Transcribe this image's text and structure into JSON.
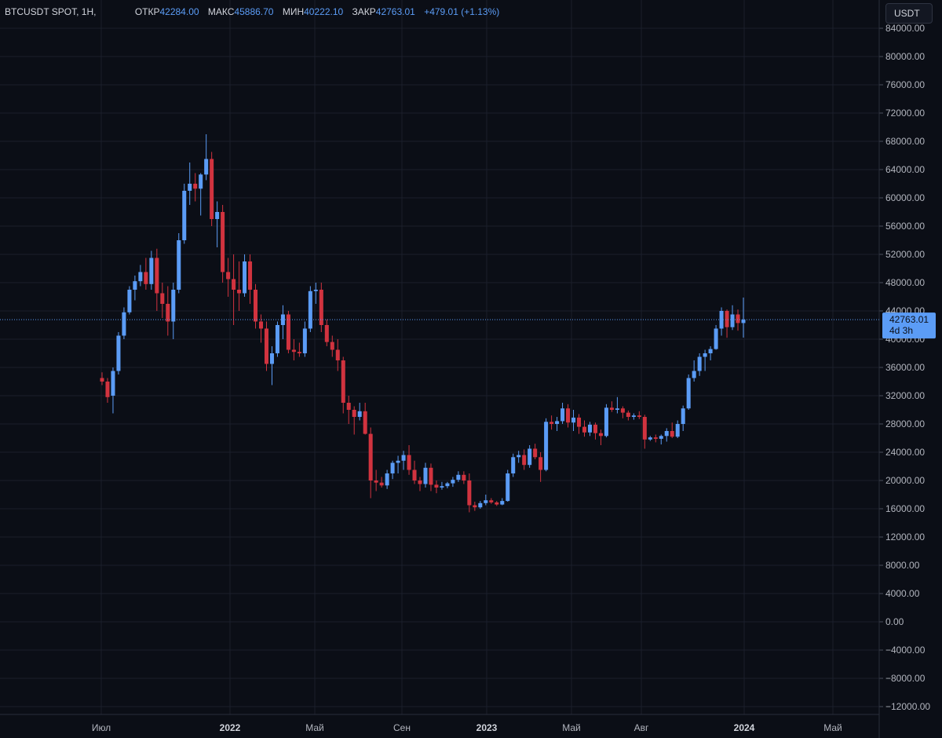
{
  "legend": {
    "symbol": "BTCUSDT SPOT, 1H,",
    "open_label": "ОТКР",
    "open": "42284.00",
    "high_label": "МАКС",
    "high": "45886.70",
    "low_label": "МИН",
    "low": "40222.10",
    "close_label": "ЗАКР",
    "close": "42763.01",
    "change": "+479.01 (+1.13%)"
  },
  "currency_button": "USDT",
  "price_label": {
    "price": "42763.01",
    "countdown": "4d 3h"
  },
  "colors": {
    "up": "#5b9cf6",
    "down": "#d1333f",
    "background": "#0b0e16",
    "grid": "#1b1f2b",
    "axis_text": "#b2b5be",
    "price_line": "#5b9cf6"
  },
  "chart_data": {
    "type": "candlestick",
    "symbol": "BTCUSDT",
    "timeframe": "1H",
    "ylim": [
      -12000,
      84000
    ],
    "y_ticks": [
      "84000.00",
      "80000.00",
      "76000.00",
      "72000.00",
      "68000.00",
      "64000.00",
      "60000.00",
      "56000.00",
      "52000.00",
      "48000.00",
      "44000.00",
      "40000.00",
      "36000.00",
      "32000.00",
      "28000.00",
      "24000.00",
      "20000.00",
      "16000.00",
      "12000.00",
      "8000.00",
      "4000.00",
      "0.00",
      "−4000.00",
      "−8000.00",
      "−12000.00"
    ],
    "x_ticks": [
      {
        "label": "Июл",
        "bold": false
      },
      {
        "label": "2022",
        "bold": true
      },
      {
        "label": "Май",
        "bold": false
      },
      {
        "label": "Сен",
        "bold": false
      },
      {
        "label": "2023",
        "bold": true
      },
      {
        "label": "Май",
        "bold": false
      },
      {
        "label": "Авг",
        "bold": false
      },
      {
        "label": "2024",
        "bold": true
      },
      {
        "label": "Май",
        "bold": false
      }
    ],
    "last_price": 42763.01,
    "candles": [
      [
        34500,
        35300,
        33500,
        34000
      ],
      [
        34000,
        34500,
        31000,
        31800
      ],
      [
        32000,
        36000,
        29500,
        35500
      ],
      [
        35500,
        41000,
        35000,
        40500
      ],
      [
        40500,
        44500,
        40000,
        43800
      ],
      [
        43800,
        47500,
        43500,
        47000
      ],
      [
        47000,
        49000,
        45500,
        48200
      ],
      [
        48200,
        50500,
        47500,
        49500
      ],
      [
        49500,
        51500,
        47000,
        47800
      ],
      [
        47800,
        52500,
        47000,
        51500
      ],
      [
        51500,
        52800,
        44000,
        46500
      ],
      [
        46500,
        48000,
        43000,
        45000
      ],
      [
        45000,
        47500,
        40500,
        42500
      ],
      [
        42500,
        48000,
        40000,
        47000
      ],
      [
        47000,
        55000,
        46500,
        54000
      ],
      [
        54000,
        62000,
        53500,
        61000
      ],
      [
        61000,
        65000,
        59000,
        62000
      ],
      [
        62000,
        63500,
        59500,
        61300
      ],
      [
        61300,
        63500,
        57500,
        63300
      ],
      [
        63300,
        69000,
        62500,
        65500
      ],
      [
        65500,
        66500,
        56000,
        57000
      ],
      [
        57000,
        59500,
        53000,
        58000
      ],
      [
        58000,
        59000,
        48000,
        49500
      ],
      [
        49500,
        51500,
        46000,
        48500
      ],
      [
        48500,
        52000,
        42000,
        47000
      ],
      [
        47000,
        51000,
        44000,
        46500
      ],
      [
        46500,
        52000,
        46000,
        51000
      ],
      [
        51000,
        52000,
        45000,
        47000
      ],
      [
        47000,
        47800,
        41500,
        42500
      ],
      [
        42500,
        43500,
        39500,
        41500
      ],
      [
        41500,
        42500,
        35500,
        36500
      ],
      [
        36500,
        39000,
        33500,
        38000
      ],
      [
        38000,
        42500,
        37500,
        42000
      ],
      [
        42000,
        44800,
        40000,
        43500
      ],
      [
        43500,
        44000,
        38000,
        38500
      ],
      [
        38500,
        40000,
        37000,
        38200
      ],
      [
        38200,
        39500,
        37500,
        38000
      ],
      [
        38000,
        42500,
        37500,
        41500
      ],
      [
        41500,
        47500,
        41000,
        46800
      ],
      [
        46800,
        48000,
        45000,
        47000
      ],
      [
        47000,
        48000,
        41000,
        42000
      ],
      [
        42000,
        42800,
        39000,
        39600
      ],
      [
        39600,
        40500,
        37500,
        38500
      ],
      [
        38500,
        40000,
        35500,
        37000
      ],
      [
        37000,
        37500,
        29500,
        31000
      ],
      [
        31000,
        32000,
        28000,
        30000
      ],
      [
        30000,
        30500,
        26500,
        29000
      ],
      [
        29000,
        31000,
        28500,
        29800
      ],
      [
        29800,
        31000,
        26500,
        26600
      ],
      [
        26600,
        27500,
        17500,
        20000
      ],
      [
        20000,
        21500,
        18500,
        19700
      ],
      [
        19700,
        20500,
        19000,
        19300
      ],
      [
        19300,
        21500,
        18800,
        21000
      ],
      [
        21000,
        22800,
        20200,
        22500
      ],
      [
        22500,
        23500,
        21000,
        22800
      ],
      [
        22800,
        24200,
        21500,
        23600
      ],
      [
        23600,
        25000,
        20800,
        21500
      ],
      [
        21500,
        22800,
        19500,
        20000
      ],
      [
        20000,
        20500,
        18500,
        19500
      ],
      [
        19500,
        22500,
        19000,
        21800
      ],
      [
        21800,
        22400,
        18500,
        19400
      ],
      [
        19400,
        20000,
        18200,
        19000
      ],
      [
        19000,
        19800,
        18700,
        19200
      ],
      [
        19200,
        19800,
        18900,
        19600
      ],
      [
        19600,
        20500,
        19100,
        20100
      ],
      [
        20100,
        21300,
        19800,
        20800
      ],
      [
        20800,
        21300,
        19500,
        20000
      ],
      [
        20000,
        21000,
        15500,
        16500
      ],
      [
        16500,
        17000,
        15700,
        16200
      ],
      [
        16200,
        17100,
        16000,
        16800
      ],
      [
        16800,
        18000,
        16500,
        17200
      ],
      [
        17200,
        17500,
        16700,
        16900
      ],
      [
        16900,
        17100,
        16400,
        16600
      ],
      [
        16600,
        17500,
        16500,
        17100
      ],
      [
        17100,
        21500,
        17000,
        21000
      ],
      [
        21000,
        23800,
        20500,
        23300
      ],
      [
        23300,
        24200,
        22500,
        23600
      ],
      [
        23600,
        24400,
        21500,
        22200
      ],
      [
        22200,
        25000,
        21800,
        24500
      ],
      [
        24500,
        25200,
        23000,
        23300
      ],
      [
        23300,
        24000,
        19800,
        21500
      ],
      [
        21500,
        28800,
        21300,
        28300
      ],
      [
        28300,
        29200,
        27200,
        28000
      ],
      [
        28000,
        29000,
        27000,
        28400
      ],
      [
        28400,
        31000,
        28000,
        30200
      ],
      [
        30200,
        30800,
        27500,
        28200
      ],
      [
        28200,
        30000,
        27000,
        28900
      ],
      [
        28900,
        29400,
        26600,
        27600
      ],
      [
        27600,
        28500,
        26200,
        26800
      ],
      [
        26800,
        28300,
        26300,
        27900
      ],
      [
        27900,
        28200,
        25800,
        26700
      ],
      [
        26700,
        27200,
        25000,
        26300
      ],
      [
        26300,
        30800,
        26100,
        30300
      ],
      [
        30300,
        31200,
        29700,
        30000
      ],
      [
        30000,
        31800,
        29500,
        30200
      ],
      [
        30200,
        30500,
        28800,
        29600
      ],
      [
        29600,
        29900,
        28500,
        29000
      ],
      [
        29000,
        29500,
        28600,
        29200
      ],
      [
        29200,
        29800,
        28700,
        29000
      ],
      [
        29000,
        29300,
        24500,
        25800
      ],
      [
        25800,
        26300,
        25600,
        26100
      ],
      [
        26100,
        26500,
        25400,
        25900
      ],
      [
        25900,
        26500,
        25100,
        26300
      ],
      [
        26300,
        27400,
        25500,
        27000
      ],
      [
        27000,
        28200,
        26000,
        26200
      ],
      [
        26200,
        28500,
        26000,
        28000
      ],
      [
        28000,
        30600,
        27000,
        30200
      ],
      [
        30200,
        35000,
        30000,
        34500
      ],
      [
        34500,
        37000,
        34000,
        35500
      ],
      [
        35500,
        38000,
        34800,
        37500
      ],
      [
        37500,
        38500,
        35500,
        38000
      ],
      [
        38000,
        39000,
        37000,
        38600
      ],
      [
        38600,
        42000,
        38500,
        41500
      ],
      [
        41500,
        44500,
        40500,
        44000
      ],
      [
        44000,
        44200,
        40200,
        41700
      ],
      [
        41700,
        44800,
        41300,
        43500
      ],
      [
        43500,
        44200,
        41200,
        42284
      ],
      [
        42284,
        45886.7,
        40222.1,
        42763.01
      ]
    ]
  }
}
